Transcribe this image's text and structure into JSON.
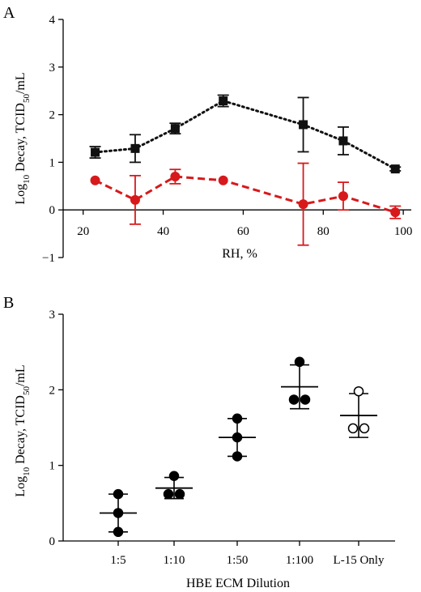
{
  "chart_data": [
    {
      "panel": "A",
      "type": "line",
      "xlabel": "RH, %",
      "ylabel_parts": [
        "Log",
        "10",
        " Decay, TCID",
        "50",
        "/mL"
      ],
      "xlim": [
        15,
        102
      ],
      "ylim": [
        -1,
        4
      ],
      "xticks": [
        20,
        40,
        60,
        80,
        100
      ],
      "yticks": [
        -1,
        0,
        1,
        2,
        3,
        4
      ],
      "grid": false,
      "series": [
        {
          "marker": "square",
          "line_style": "dotted",
          "color": "#111111",
          "x": [
            23,
            33,
            43,
            55,
            75,
            85,
            98
          ],
          "y": [
            1.21,
            1.29,
            1.71,
            2.29,
            1.79,
            1.45,
            0.86
          ],
          "err": [
            0.12,
            0.29,
            0.11,
            0.12,
            0.57,
            0.29,
            0.04
          ]
        },
        {
          "marker": "circle",
          "line_style": "dashed",
          "color": "#d7191c",
          "x": [
            23,
            33,
            43,
            55,
            75,
            85,
            98
          ],
          "y": [
            0.62,
            0.21,
            0.7,
            0.62,
            0.12,
            0.29,
            -0.05
          ],
          "err": [
            0.0,
            0.51,
            0.15,
            0.0,
            0.86,
            0.29,
            0.13
          ]
        }
      ]
    },
    {
      "panel": "B",
      "type": "scatter",
      "xlabel": "HBE ECM Dilution",
      "ylabel_parts": [
        "Log",
        "10",
        " Decay, TCID",
        "50",
        "/mL"
      ],
      "categories": [
        "1:5",
        "1:10",
        "1:50",
        "1:100",
        "L-15 Only"
      ],
      "ylim": [
        0,
        3
      ],
      "yticks": [
        0,
        1,
        2,
        3
      ],
      "grid": false,
      "groups": [
        {
          "category": "1:5",
          "filled": true,
          "points": [
            0.62,
            0.37,
            0.12
          ],
          "mean": 0.37,
          "sd": 0.25
        },
        {
          "category": "1:10",
          "filled": true,
          "points": [
            0.86,
            0.62,
            0.62
          ],
          "mean": 0.7,
          "sd": 0.14
        },
        {
          "category": "1:50",
          "filled": true,
          "points": [
            1.62,
            1.37,
            1.12
          ],
          "mean": 1.37,
          "sd": 0.25
        },
        {
          "category": "1:100",
          "filled": true,
          "points": [
            2.37,
            1.87,
            1.87
          ],
          "mean": 2.04,
          "sd": 0.29
        },
        {
          "category": "L-15 Only",
          "filled": false,
          "points": [
            1.98,
            1.49,
            1.49
          ],
          "mean": 1.66,
          "sd": 0.29
        }
      ]
    }
  ]
}
